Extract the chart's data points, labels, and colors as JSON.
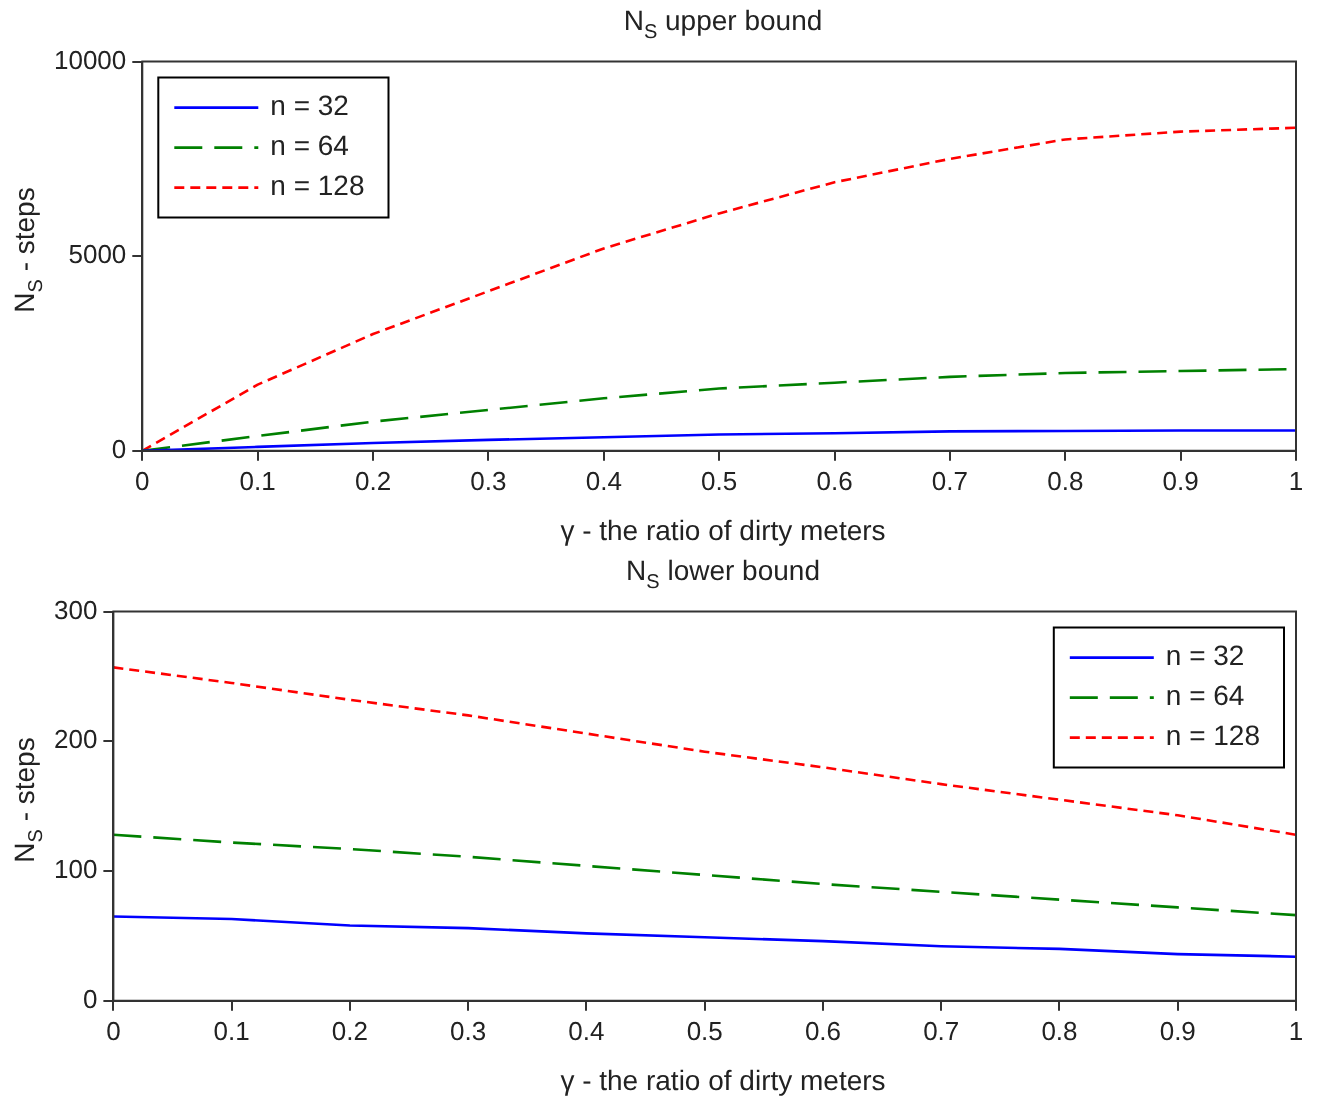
{
  "chart_data": [
    {
      "type": "line",
      "title": "N$_{S}$ upper bound",
      "xlabel": "γ - the ratio of dirty meters",
      "ylabel": "N$_{S}$ - steps",
      "x": [
        0,
        0.1,
        0.2,
        0.3,
        0.4,
        0.5,
        0.6,
        0.7,
        0.8,
        0.9,
        1
      ],
      "series": [
        {
          "name": "n = 32",
          "color": "#0000ff",
          "line_style": "solid",
          "values": [
            0,
            100,
            200,
            280,
            350,
            420,
            450,
            500,
            510,
            520,
            520
          ]
        },
        {
          "name": "n = 64",
          "color": "#008000",
          "line_style": "dashed",
          "values": [
            0,
            380,
            750,
            1050,
            1350,
            1600,
            1750,
            1900,
            2000,
            2050,
            2100
          ]
        },
        {
          "name": "n = 128",
          "color": "#ff0000",
          "line_style": "dotted",
          "values": [
            0,
            1700,
            3000,
            4100,
            5200,
            6100,
            6900,
            7500,
            8000,
            8200,
            8300
          ]
        }
      ],
      "xlim": [
        0,
        1
      ],
      "xticks": [
        0,
        0.1,
        0.2,
        0.3,
        0.4,
        0.5,
        0.6,
        0.7,
        0.8,
        0.9,
        1
      ],
      "ylim": [
        0,
        10000
      ],
      "yticks": [
        0,
        5000,
        10000
      ],
      "grid": false,
      "legend": "top left",
      "marker": "none"
    },
    {
      "type": "line",
      "title": "N$_{S}$ lower bound",
      "xlabel": "γ - the ratio of dirty meters",
      "ylabel": "N$_{S}$ - steps",
      "x": [
        0,
        0.1,
        0.2,
        0.3,
        0.4,
        0.5,
        0.6,
        0.7,
        0.8,
        0.9,
        1
      ],
      "series": [
        {
          "name": "n = 32",
          "color": "#0000ff",
          "line_style": "solid",
          "values": [
            65,
            63,
            58,
            56,
            52,
            49,
            46,
            42,
            40,
            36,
            34
          ]
        },
        {
          "name": "n = 64",
          "color": "#008000",
          "line_style": "dashed",
          "values": [
            128,
            122,
            117,
            111,
            104,
            97,
            90,
            84,
            78,
            72,
            66
          ]
        },
        {
          "name": "n = 128",
          "color": "#ff0000",
          "line_style": "dotted",
          "values": [
            257,
            245,
            232,
            220,
            206,
            192,
            180,
            167,
            155,
            143,
            128
          ]
        }
      ],
      "xlim": [
        0,
        1
      ],
      "xticks": [
        0,
        0.1,
        0.2,
        0.3,
        0.4,
        0.5,
        0.6,
        0.7,
        0.8,
        0.9,
        1
      ],
      "ylim": [
        0,
        300
      ],
      "yticks": [
        0,
        100,
        200,
        300
      ],
      "grid": false,
      "legend": "top right",
      "marker": "none"
    }
  ]
}
